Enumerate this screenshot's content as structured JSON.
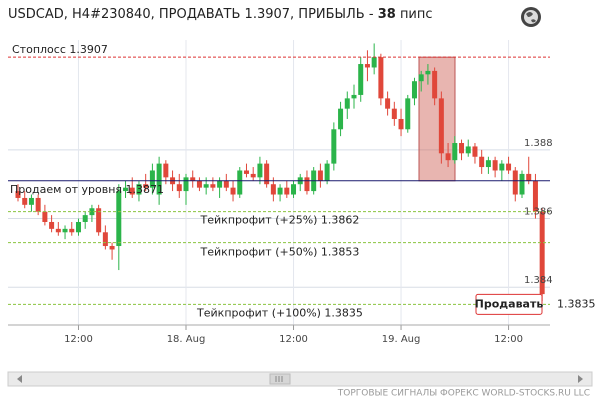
{
  "chart_data": {
    "type": "candlestick",
    "title": "USDCAD, H4#230840, ПРОДАВАТЬ 1.3907, ПРИБЫЛЬ -",
    "profit_pips": 38,
    "profit_unit": "пипс",
    "ylim": [
      1.3829,
      1.3912
    ],
    "yticks": [
      1.384,
      1.386,
      1.388
    ],
    "xticks": [
      {
        "value": 9,
        "label": "12:00"
      },
      {
        "value": 25,
        "label": "18. Aug"
      },
      {
        "value": 41,
        "label": "12:00"
      },
      {
        "value": 57,
        "label": "19. Aug"
      },
      {
        "value": 73,
        "label": "12:00"
      }
    ],
    "grid": true,
    "up_color": "#2bb44a",
    "down_color": "#e0473a",
    "open": [
      1.3868,
      1.3866,
      1.3864,
      1.3866,
      1.3862,
      1.3859,
      1.3857,
      1.3856,
      1.3857,
      1.3856,
      1.3859,
      1.3861,
      1.3863,
      1.3856,
      1.3852,
      1.3852,
      1.3868,
      1.3869,
      1.3867,
      1.387,
      1.3869,
      1.3867,
      1.3876,
      1.3872,
      1.387,
      1.3868,
      1.3872,
      1.3871,
      1.3869,
      1.387,
      1.3869,
      1.3871,
      1.3869,
      1.3867,
      1.3874,
      1.3873,
      1.3872,
      1.3876,
      1.387,
      1.3867,
      1.3869,
      1.3867,
      1.387,
      1.3872,
      1.3868,
      1.3874,
      1.3871,
      1.3876,
      1.3886,
      1.3892,
      1.3895,
      1.3896,
      1.3905,
      1.3904,
      1.3907,
      1.3895,
      1.3892,
      1.3889,
      1.3886,
      1.3895,
      1.39,
      1.3902,
      1.3903,
      1.3895,
      1.3879,
      1.3877,
      1.3882,
      1.3879,
      1.3881,
      1.3878,
      1.3875,
      1.3877,
      1.3874,
      1.3876,
      1.3874,
      1.3867,
      1.3873,
      1.3871,
      1.3862
    ],
    "high": [
      1.387,
      1.3868,
      1.3867,
      1.3867,
      1.3864,
      1.3861,
      1.3859,
      1.3858,
      1.3859,
      1.386,
      1.3862,
      1.3864,
      1.3864,
      1.3858,
      1.3853,
      1.387,
      1.3871,
      1.3872,
      1.3871,
      1.3873,
      1.3876,
      1.3878,
      1.3877,
      1.3874,
      1.3873,
      1.3873,
      1.3874,
      1.3872,
      1.3872,
      1.3872,
      1.3872,
      1.3873,
      1.3871,
      1.3875,
      1.3876,
      1.3875,
      1.3878,
      1.3877,
      1.3872,
      1.387,
      1.3871,
      1.3871,
      1.3873,
      1.3874,
      1.3875,
      1.3876,
      1.3877,
      1.3888,
      1.3894,
      1.3897,
      1.3899,
      1.3907,
      1.3909,
      1.3911,
      1.3908,
      1.3897,
      1.3894,
      1.3892,
      1.3896,
      1.3901,
      1.3903,
      1.3905,
      1.3904,
      1.3897,
      1.3882,
      1.3884,
      1.3883,
      1.3883,
      1.3882,
      1.388,
      1.3878,
      1.3878,
      1.3877,
      1.3878,
      1.3875,
      1.3874,
      1.3878,
      1.3873,
      1.3863
    ],
    "low": [
      1.3865,
      1.3863,
      1.3862,
      1.3861,
      1.3858,
      1.3856,
      1.3855,
      1.3854,
      1.3855,
      1.3855,
      1.3857,
      1.3859,
      1.3855,
      1.3851,
      1.3848,
      1.3845,
      1.3866,
      1.3866,
      1.3865,
      1.3868,
      1.3867,
      1.3864,
      1.387,
      1.3868,
      1.3866,
      1.3864,
      1.3869,
      1.3868,
      1.3867,
      1.3868,
      1.3866,
      1.3868,
      1.3865,
      1.3866,
      1.3872,
      1.3871,
      1.387,
      1.3869,
      1.3865,
      1.3865,
      1.3866,
      1.3866,
      1.3868,
      1.3867,
      1.3867,
      1.3869,
      1.387,
      1.3874,
      1.3884,
      1.3889,
      1.3892,
      1.3894,
      1.39,
      1.3902,
      1.3893,
      1.389,
      1.3887,
      1.3884,
      1.3885,
      1.3893,
      1.3897,
      1.3899,
      1.3893,
      1.3876,
      1.3875,
      1.3876,
      1.3877,
      1.3878,
      1.3876,
      1.3873,
      1.3873,
      1.3872,
      1.3871,
      1.3873,
      1.3865,
      1.3866,
      1.387,
      1.386,
      1.3836
    ],
    "close": [
      1.3866,
      1.3864,
      1.3866,
      1.3862,
      1.3859,
      1.3857,
      1.3856,
      1.3857,
      1.3856,
      1.3859,
      1.3861,
      1.3863,
      1.3856,
      1.3852,
      1.3851,
      1.3868,
      1.3869,
      1.3867,
      1.387,
      1.3869,
      1.3874,
      1.3876,
      1.3872,
      1.387,
      1.3868,
      1.3872,
      1.3871,
      1.3869,
      1.387,
      1.3869,
      1.3871,
      1.3869,
      1.3867,
      1.3874,
      1.3873,
      1.3872,
      1.3876,
      1.387,
      1.3867,
      1.3869,
      1.3867,
      1.387,
      1.3872,
      1.3868,
      1.3874,
      1.3871,
      1.3876,
      1.3886,
      1.3892,
      1.3895,
      1.3896,
      1.3905,
      1.3904,
      1.3907,
      1.3895,
      1.3892,
      1.3889,
      1.3886,
      1.3895,
      1.39,
      1.3902,
      1.3903,
      1.3895,
      1.3879,
      1.3877,
      1.3882,
      1.3879,
      1.3881,
      1.3878,
      1.3875,
      1.3877,
      1.3874,
      1.3876,
      1.3874,
      1.3867,
      1.3873,
      1.3871,
      1.3862,
      1.3838
    ],
    "levels": [
      {
        "label": "Стоплосс 1.3907",
        "value": 1.3907,
        "color": "#d33",
        "style": "dashed"
      },
      {
        "label": "Продаем от уровня 1.3871",
        "value": 1.3871,
        "color": "#1a1a6e",
        "style": "solid"
      },
      {
        "label": "Тейкпрофит (+25%) 1.3862",
        "value": 1.3862,
        "color": "#8ac43f",
        "style": "dashed"
      },
      {
        "label": "Тейкпрофит (+50%) 1.3853",
        "value": 1.3853,
        "color": "#8ac43f",
        "style": "dashed"
      },
      {
        "label": "Тейкпрофит (+100%) 1.3835",
        "value": 1.3835,
        "color": "#8ac43f",
        "style": "dashed"
      }
    ],
    "current_price": 1.3835,
    "button": "Продавать",
    "footer": "ТОРГОВЫЕ СИГНАЛЫ ФОРЕКС WORLD-STOCKS.RU LLC"
  }
}
